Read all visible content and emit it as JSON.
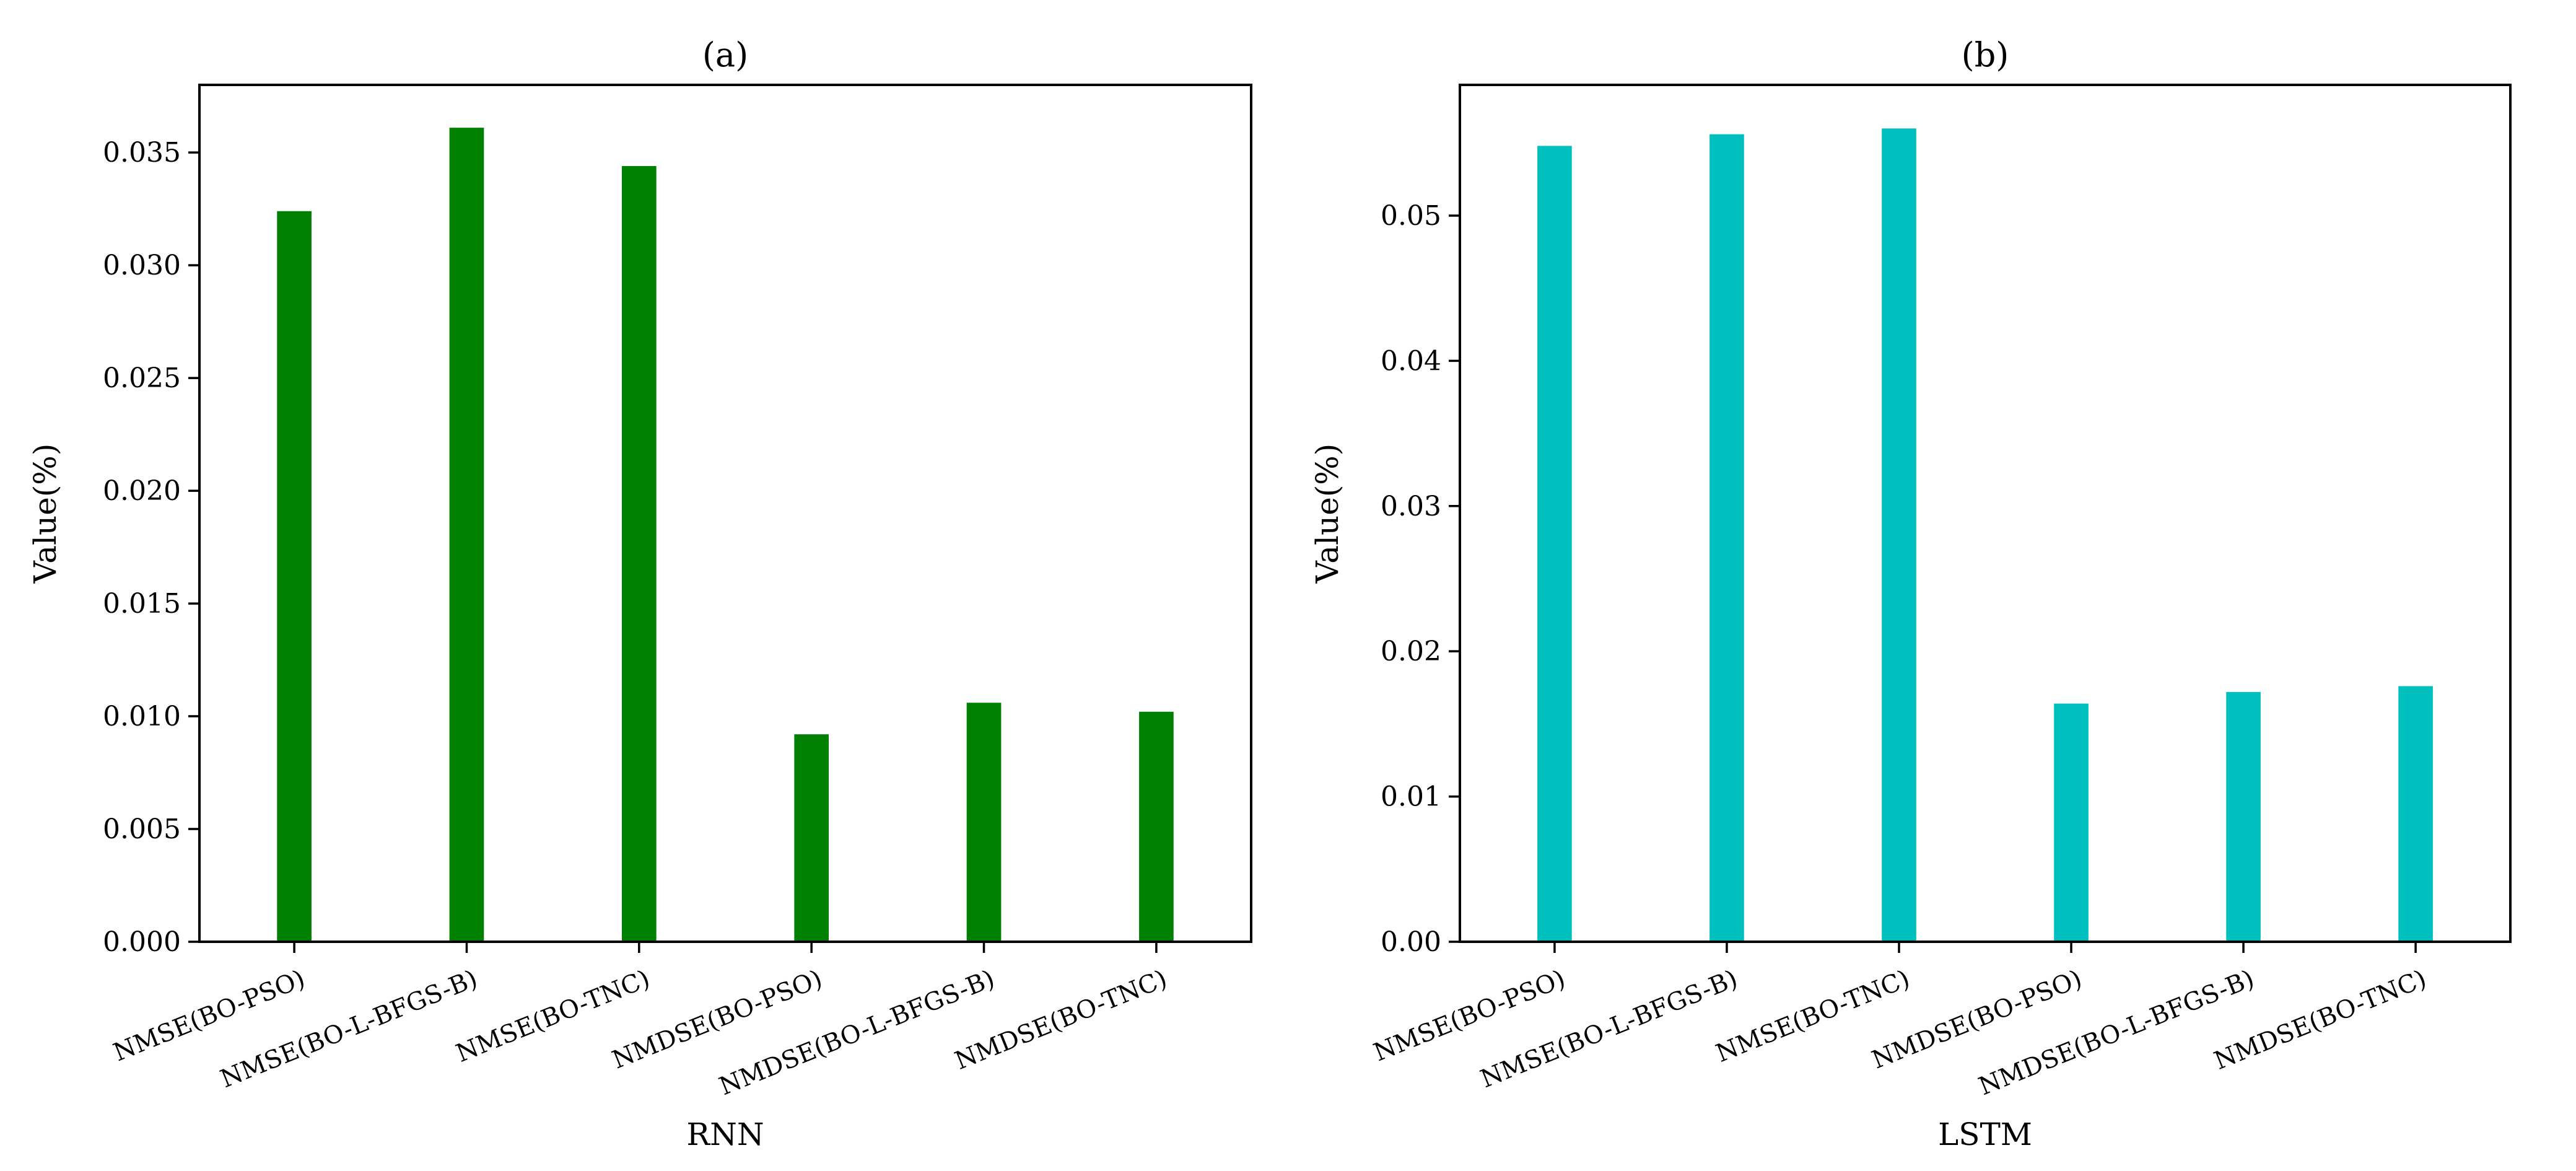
{
  "chart_data": [
    {
      "type": "bar",
      "title": "(a)",
      "xlabel": "RNN",
      "ylabel": "Value(%)",
      "categories": [
        "NMSE(BO-PSO)",
        "NMSE(BO-L-BFGS-B)",
        "NMSE(BO-TNC)",
        "NMDSE(BO-PSO)",
        "NMDSE(BO-L-BFGS-B)",
        "NMDSE(BO-TNC)"
      ],
      "values": [
        0.0324,
        0.0361,
        0.0344,
        0.0092,
        0.0106,
        0.0102
      ],
      "ylim": [
        0,
        0.038
      ],
      "yticks": [
        "0.000",
        "0.005",
        "0.010",
        "0.015",
        "0.020",
        "0.025",
        "0.030",
        "0.035"
      ],
      "color": "#008000",
      "grid": false
    },
    {
      "type": "bar",
      "title": "(b)",
      "xlabel": "LSTM",
      "ylabel": "Value(%)",
      "categories": [
        "NMSE(BO-PSO)",
        "NMSE(BO-L-BFGS-B)",
        "NMSE(BO-TNC)",
        "NMDSE(BO-PSO)",
        "NMDSE(BO-L-BFGS-B)",
        "NMDSE(BO-TNC)"
      ],
      "values": [
        0.0548,
        0.0556,
        0.056,
        0.0164,
        0.0172,
        0.0176
      ],
      "ylim": [
        0,
        0.059
      ],
      "yticks": [
        "0.00",
        "0.01",
        "0.02",
        "0.03",
        "0.04",
        "0.05"
      ],
      "color": "#00BFBF",
      "grid": false
    }
  ]
}
